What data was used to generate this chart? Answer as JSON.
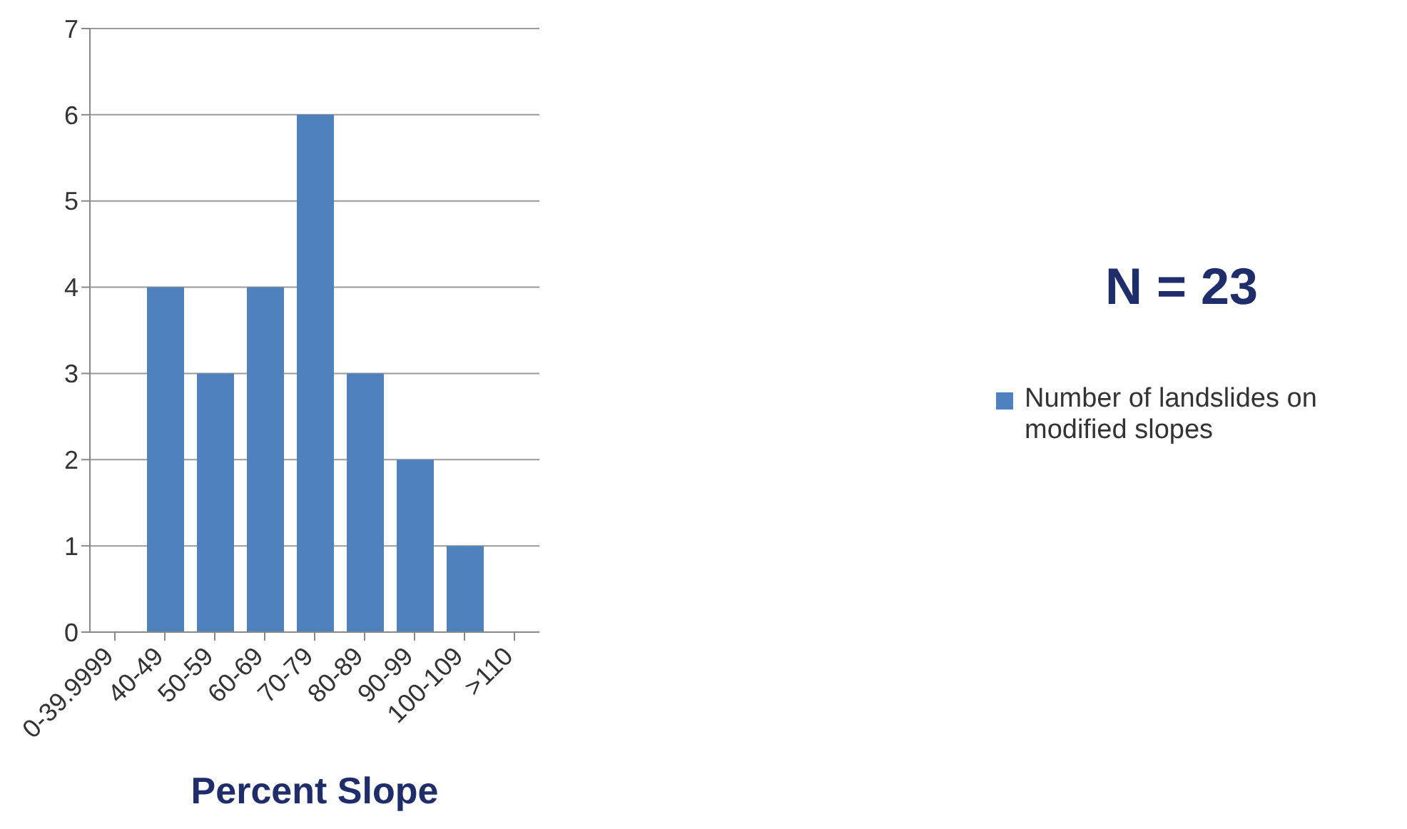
{
  "chart_data": {
    "type": "bar",
    "xlabel": "Percent Slope",
    "categories": [
      "0-39.9999",
      "40-49",
      "50-59",
      "60-69",
      "70-79",
      "80-89",
      "90-99",
      "100-109",
      ">110"
    ],
    "series": [
      {
        "name": "Number of landslides on modified slopes",
        "color": "#4f81bd",
        "values": [
          0,
          4,
          3,
          4,
          6,
          3,
          2,
          1,
          0
        ]
      }
    ],
    "ylim": [
      0,
      7
    ],
    "yticks": [
      0,
      1,
      2,
      3,
      4,
      5,
      6,
      7
    ],
    "grid": "y",
    "legend": "right",
    "annotations": [
      "N = 23"
    ]
  }
}
